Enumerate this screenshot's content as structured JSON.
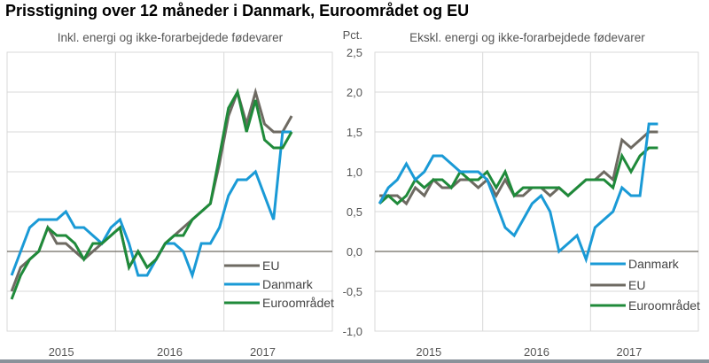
{
  "title": "Prisstigning over 12 måneder i Danmark, Euroområdet og EU",
  "colors": {
    "Danmark": "#1a9ad6",
    "EU": "#6e6a62",
    "Euroområdet": "#1f8a3a"
  },
  "chart_data": [
    {
      "type": "line",
      "title": "Inkl. energi og ikke-forarbejdede fødevarer",
      "ylabel": "",
      "ylim": [
        -1.0,
        2.5
      ],
      "yticks": [],
      "x_axis": {
        "start": "2015-01",
        "end": "2017-12",
        "labels": [
          "2015",
          "2016",
          "2017"
        ]
      },
      "grid": true,
      "legend": {
        "placement": "bottom-right",
        "order": [
          "EU",
          "Danmark",
          "Euroområdet"
        ]
      },
      "x": [
        "2015-01",
        "2015-02",
        "2015-03",
        "2015-04",
        "2015-05",
        "2015-06",
        "2015-07",
        "2015-08",
        "2015-09",
        "2015-10",
        "2015-11",
        "2015-12",
        "2016-01",
        "2016-02",
        "2016-03",
        "2016-04",
        "2016-05",
        "2016-06",
        "2016-07",
        "2016-08",
        "2016-09",
        "2016-10",
        "2016-11",
        "2016-12",
        "2017-01",
        "2017-02",
        "2017-03",
        "2017-04",
        "2017-05",
        "2017-06",
        "2017-07",
        "2017-08"
      ],
      "series": [
        {
          "name": "EU",
          "values": [
            -0.5,
            -0.2,
            -0.1,
            0.0,
            0.3,
            0.1,
            0.1,
            0.0,
            -0.1,
            0.0,
            0.1,
            0.2,
            0.3,
            -0.2,
            0.0,
            -0.2,
            -0.1,
            0.1,
            0.2,
            0.3,
            0.4,
            0.5,
            0.6,
            1.1,
            1.7,
            2.0,
            1.6,
            2.0,
            1.6,
            1.5,
            1.5,
            1.7
          ]
        },
        {
          "name": "Danmark",
          "values": [
            -0.3,
            0.0,
            0.3,
            0.4,
            0.4,
            0.4,
            0.5,
            0.3,
            0.3,
            0.2,
            0.1,
            0.3,
            0.4,
            0.1,
            -0.3,
            -0.3,
            -0.1,
            0.1,
            0.1,
            0.0,
            -0.3,
            0.1,
            0.1,
            0.3,
            0.7,
            0.9,
            0.9,
            1.0,
            0.7,
            0.4,
            1.5,
            1.5
          ]
        },
        {
          "name": "Euroområdet",
          "values": [
            -0.6,
            -0.3,
            -0.1,
            0.0,
            0.3,
            0.2,
            0.2,
            0.1,
            -0.1,
            0.1,
            0.1,
            0.2,
            0.3,
            -0.2,
            0.0,
            -0.2,
            -0.1,
            0.1,
            0.2,
            0.2,
            0.4,
            0.5,
            0.6,
            1.2,
            1.8,
            2.0,
            1.5,
            1.9,
            1.4,
            1.3,
            1.3,
            1.5
          ]
        }
      ]
    },
    {
      "type": "line",
      "title": "Ekskl. energi og ikke-forarbejdede fødevarer",
      "ylabel": "Pct.",
      "ylim": [
        -1.0,
        2.5
      ],
      "yticks": [
        "2,5",
        "2,0",
        "1,5",
        "1,0",
        "0,5",
        "0,0",
        "-0,5",
        "-1,0"
      ],
      "x_axis": {
        "start": "2015-01",
        "end": "2017-12",
        "labels": [
          "2015",
          "2016",
          "2017"
        ]
      },
      "grid": true,
      "legend": {
        "placement": "bottom-right",
        "order": [
          "Danmark",
          "EU",
          "Euroområdet"
        ]
      },
      "x": [
        "2015-01",
        "2015-02",
        "2015-03",
        "2015-04",
        "2015-05",
        "2015-06",
        "2015-07",
        "2015-08",
        "2015-09",
        "2015-10",
        "2015-11",
        "2015-12",
        "2016-01",
        "2016-02",
        "2016-03",
        "2016-04",
        "2016-05",
        "2016-06",
        "2016-07",
        "2016-08",
        "2016-09",
        "2016-10",
        "2016-11",
        "2016-12",
        "2017-01",
        "2017-02",
        "2017-03",
        "2017-04",
        "2017-05",
        "2017-06",
        "2017-07",
        "2017-08"
      ],
      "series": [
        {
          "name": "EU",
          "values": [
            0.7,
            0.7,
            0.7,
            0.6,
            0.8,
            0.7,
            0.9,
            0.8,
            0.8,
            0.9,
            0.9,
            0.8,
            0.9,
            0.7,
            0.9,
            0.7,
            0.7,
            0.8,
            0.8,
            0.7,
            0.8,
            0.7,
            0.8,
            0.9,
            0.9,
            1.0,
            0.9,
            1.4,
            1.3,
            1.4,
            1.5,
            1.5
          ]
        },
        {
          "name": "Euroområdet",
          "values": [
            0.6,
            0.7,
            0.6,
            0.7,
            0.9,
            0.8,
            0.9,
            0.9,
            0.8,
            1.0,
            0.9,
            0.9,
            1.0,
            0.8,
            1.0,
            0.7,
            0.8,
            0.8,
            0.8,
            0.8,
            0.8,
            0.7,
            0.8,
            0.9,
            0.9,
            0.9,
            0.8,
            1.2,
            1.0,
            1.2,
            1.3,
            1.3
          ]
        },
        {
          "name": "Danmark",
          "values": [
            0.6,
            0.8,
            0.9,
            1.1,
            0.9,
            1.0,
            1.2,
            1.2,
            1.1,
            1.0,
            1.0,
            1.0,
            0.9,
            0.6,
            0.3,
            0.2,
            0.4,
            0.6,
            0.7,
            0.5,
            0.0,
            0.1,
            0.2,
            -0.1,
            0.3,
            0.4,
            0.5,
            0.8,
            0.7,
            0.7,
            1.6,
            1.6
          ]
        }
      ]
    }
  ]
}
